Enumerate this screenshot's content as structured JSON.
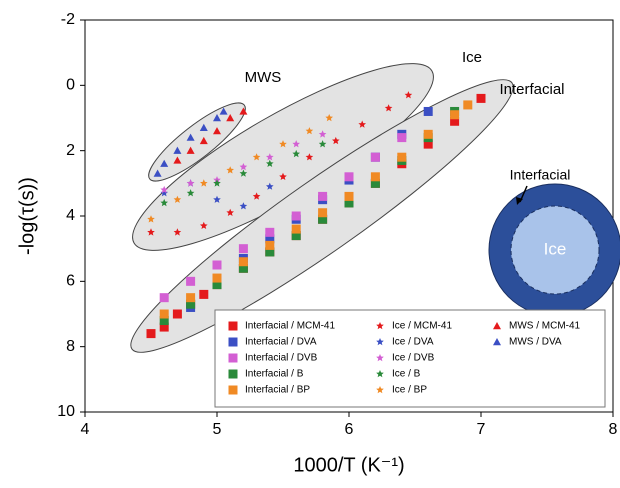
{
  "chart_data": {
    "type": "scatter",
    "x_label": "1000/T (K⁻¹)",
    "y_label": "-log(τ(s))",
    "xlim": [
      4,
      8
    ],
    "xticks": [
      4,
      5,
      6,
      7,
      8
    ],
    "ylim": [
      -2,
      10
    ],
    "yticks": [
      -2,
      0,
      2,
      4,
      6,
      8,
      10
    ],
    "y_inverted": true,
    "annotations": [
      "MWS",
      "Ice",
      "Interfacial"
    ],
    "inset_labels": [
      "Interfacial",
      "Ice"
    ],
    "series": [
      {
        "name": "Interfacial / MCM-41",
        "color": "#e41a1c",
        "marker": "square",
        "x": [
          4.5,
          4.6,
          4.7,
          4.8,
          4.9,
          5.0,
          5.2,
          5.4,
          5.6,
          5.8,
          6.0,
          6.2,
          6.4,
          6.6,
          6.8,
          7.0
        ],
        "values": [
          7.6,
          7.4,
          7.0,
          6.7,
          6.4,
          6.1,
          5.6,
          5.1,
          4.6,
          4.1,
          3.6,
          3.0,
          2.4,
          1.8,
          1.1,
          0.4
        ]
      },
      {
        "name": "Interfacial / DVA",
        "color": "#3b4fc4",
        "marker": "square",
        "x": [
          4.8,
          5.0,
          5.2,
          5.4,
          5.6,
          5.8,
          6.0,
          6.2,
          6.4,
          6.6
        ],
        "values": [
          6.8,
          6.0,
          5.3,
          4.7,
          4.1,
          3.5,
          2.9,
          2.2,
          1.5,
          0.8
        ]
      },
      {
        "name": "Interfacial / DVB",
        "color": "#d35fd3",
        "marker": "square",
        "x": [
          4.6,
          4.8,
          5.0,
          5.2,
          5.4,
          5.6,
          5.8,
          6.0,
          6.2,
          6.4
        ],
        "values": [
          6.5,
          6.0,
          5.5,
          5.0,
          4.5,
          4.0,
          3.4,
          2.8,
          2.2,
          1.6
        ]
      },
      {
        "name": "Interfacial / B",
        "color": "#2a8a3a",
        "marker": "square",
        "x": [
          4.6,
          4.8,
          5.0,
          5.2,
          5.4,
          5.6,
          5.8,
          6.0,
          6.2,
          6.4,
          6.6,
          6.8
        ],
        "values": [
          7.2,
          6.7,
          6.1,
          5.6,
          5.1,
          4.6,
          4.1,
          3.6,
          3.0,
          2.3,
          1.6,
          0.8
        ]
      },
      {
        "name": "Interfacial / BP",
        "color": "#f08a24",
        "marker": "square",
        "x": [
          4.6,
          4.8,
          5.0,
          5.2,
          5.4,
          5.6,
          5.8,
          6.0,
          6.2,
          6.4,
          6.6,
          6.8,
          6.9
        ],
        "values": [
          7.0,
          6.5,
          5.9,
          5.4,
          4.9,
          4.4,
          3.9,
          3.4,
          2.8,
          2.2,
          1.5,
          0.9,
          0.6
        ]
      },
      {
        "name": "Ice / MCM-41",
        "color": "#e41a1c",
        "marker": "star",
        "x": [
          4.5,
          4.7,
          4.9,
          5.1,
          5.3,
          5.5,
          5.7,
          5.9,
          6.1,
          6.3,
          6.45
        ],
        "values": [
          4.5,
          4.5,
          4.3,
          3.9,
          3.4,
          2.8,
          2.2,
          1.7,
          1.2,
          0.7,
          0.3
        ]
      },
      {
        "name": "Ice / DVA",
        "color": "#3b4fc4",
        "marker": "star",
        "x": [
          4.6,
          4.8,
          5.0,
          5.2,
          5.4
        ],
        "values": [
          3.3,
          3.0,
          3.5,
          3.7,
          3.1
        ]
      },
      {
        "name": "Ice / DVB",
        "color": "#d35fd3",
        "marker": "star",
        "x": [
          4.6,
          4.8,
          5.0,
          5.2,
          5.4,
          5.6,
          5.8
        ],
        "values": [
          3.2,
          3.0,
          2.9,
          2.5,
          2.2,
          1.8,
          1.5
        ]
      },
      {
        "name": "Ice / B",
        "color": "#2a8a3a",
        "marker": "star",
        "x": [
          4.6,
          4.8,
          5.0,
          5.2,
          5.4,
          5.6,
          5.8
        ],
        "values": [
          3.6,
          3.3,
          3.0,
          2.7,
          2.4,
          2.1,
          1.8
        ]
      },
      {
        "name": "Ice / BP",
        "color": "#f08a24",
        "marker": "star",
        "x": [
          4.5,
          4.7,
          4.9,
          5.1,
          5.3,
          5.5,
          5.7,
          5.85
        ],
        "values": [
          4.1,
          3.5,
          3.0,
          2.6,
          2.2,
          1.8,
          1.4,
          1.0
        ]
      },
      {
        "name": "MWS / MCM-41",
        "color": "#e41a1c",
        "marker": "triangle",
        "x": [
          4.7,
          4.8,
          4.9,
          5.0,
          5.1,
          5.2
        ],
        "values": [
          2.3,
          2.0,
          1.7,
          1.4,
          1.0,
          0.8
        ]
      },
      {
        "name": "MWS / DVA",
        "color": "#3b4fc4",
        "marker": "triangle",
        "x": [
          4.55,
          4.6,
          4.7,
          4.8,
          4.9,
          5.0,
          5.05
        ],
        "values": [
          2.7,
          2.4,
          2.0,
          1.6,
          1.3,
          1.0,
          0.8
        ]
      }
    ]
  }
}
